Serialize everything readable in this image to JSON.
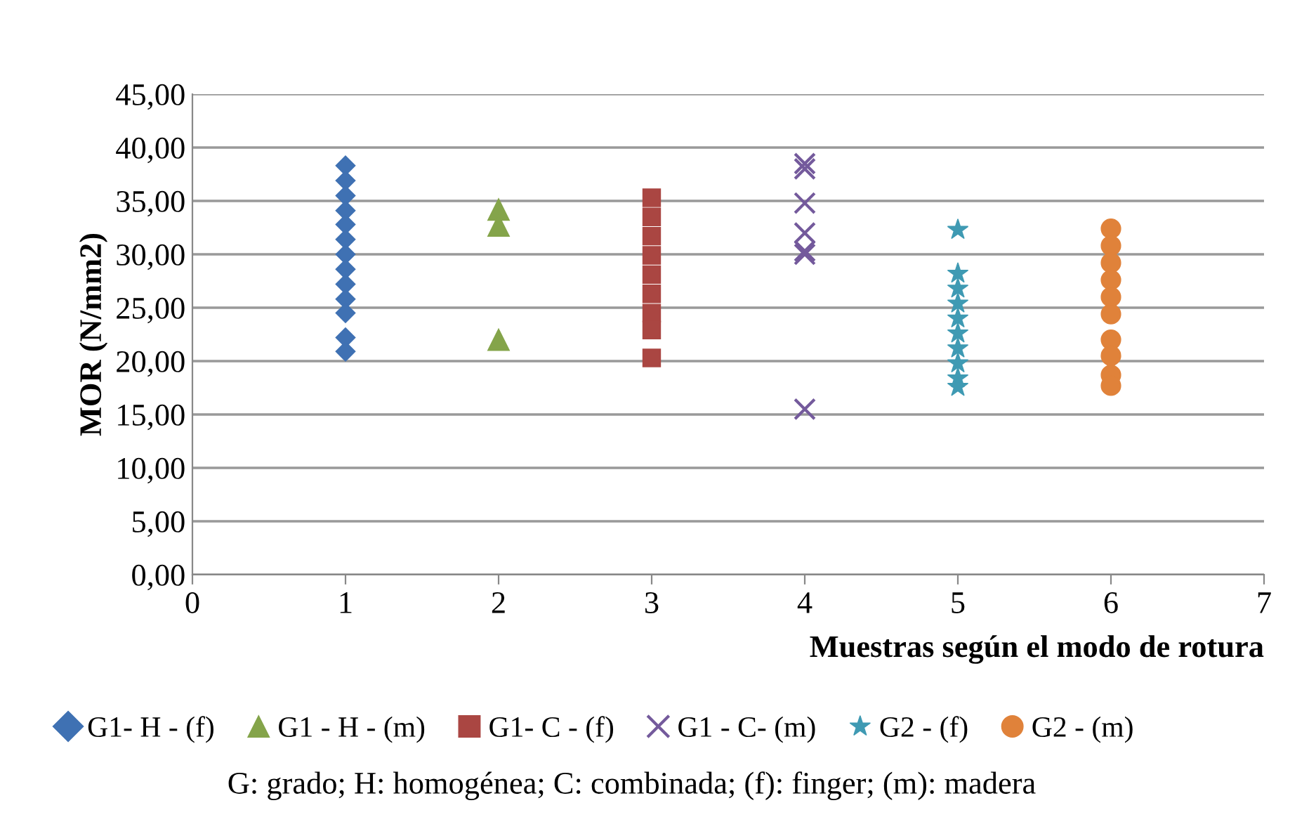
{
  "chart_data": {
    "type": "scatter",
    "xlabel": "Muestras según el modo de rotura",
    "ylabel": "MOR (N/mm2)",
    "xlim": [
      0,
      7
    ],
    "xticks": [
      0,
      1,
      2,
      3,
      4,
      5,
      6,
      7
    ],
    "ylim": [
      0,
      45
    ],
    "yticks": [
      {
        "value": 0,
        "label": "0,00"
      },
      {
        "value": 5,
        "label": "5,00"
      },
      {
        "value": 10,
        "label": "10,00"
      },
      {
        "value": 15,
        "label": "15,00"
      },
      {
        "value": 20,
        "label": "20,00"
      },
      {
        "value": 25,
        "label": "25,00"
      },
      {
        "value": 30,
        "label": "30,00"
      },
      {
        "value": 35,
        "label": "35,00"
      },
      {
        "value": 40,
        "label": "40,00"
      },
      {
        "value": 45,
        "label": "45,00"
      }
    ],
    "grid": "y",
    "legend": "bottom",
    "series": [
      {
        "name": "G1- H - (f)",
        "color": "#3f71b3",
        "marker": "diamond",
        "x": [
          1,
          1,
          1,
          1,
          1,
          1,
          1,
          1,
          1,
          1,
          1,
          1,
          1
        ],
        "values": [
          38.3,
          36.9,
          35.5,
          34.1,
          32.8,
          31.4,
          30,
          28.6,
          27.2,
          25.8,
          24.5,
          22.2,
          20.9
        ]
      },
      {
        "name": "G1 - H - (m)",
        "color": "#84a44a",
        "marker": "triangle",
        "x": [
          2,
          2,
          2
        ],
        "values": [
          34.2,
          32.7,
          22
        ]
      },
      {
        "name": "G1- C - (f)",
        "color": "#aa4642",
        "marker": "square",
        "x": [
          3,
          3,
          3,
          3,
          3,
          3,
          3,
          3,
          3
        ],
        "values": [
          35.3,
          33.5,
          31.7,
          29.9,
          28.1,
          26.3,
          24.5,
          22.9,
          20.3
        ]
      },
      {
        "name": "G1 - C- (m)",
        "color": "#745a9c",
        "marker": "cross",
        "x": [
          4,
          4,
          4,
          4,
          4,
          4,
          4
        ],
        "values": [
          38.5,
          38,
          34.8,
          32,
          30.3,
          30,
          15.5
        ]
      },
      {
        "name": "G2 - (f)",
        "color": "#3f9ab3",
        "marker": "star",
        "x": [
          5,
          5,
          5,
          5,
          5,
          5,
          5,
          5,
          5,
          5
        ],
        "values": [
          32.3,
          28.2,
          26.8,
          25.4,
          24,
          22.6,
          21.2,
          19.8,
          18.4,
          17.6
        ]
      },
      {
        "name": "G2 - (m)",
        "color": "#e0823a",
        "marker": "circle",
        "x": [
          6,
          6,
          6,
          6,
          6,
          6,
          6,
          6,
          6,
          6
        ],
        "values": [
          32.4,
          30.8,
          29.2,
          27.6,
          26,
          24.4,
          22,
          20.5,
          18.7,
          17.7
        ]
      }
    ],
    "annotations": [
      "G: grado; H: homogénea; C: combinada; (f): finger; (m): madera"
    ]
  }
}
